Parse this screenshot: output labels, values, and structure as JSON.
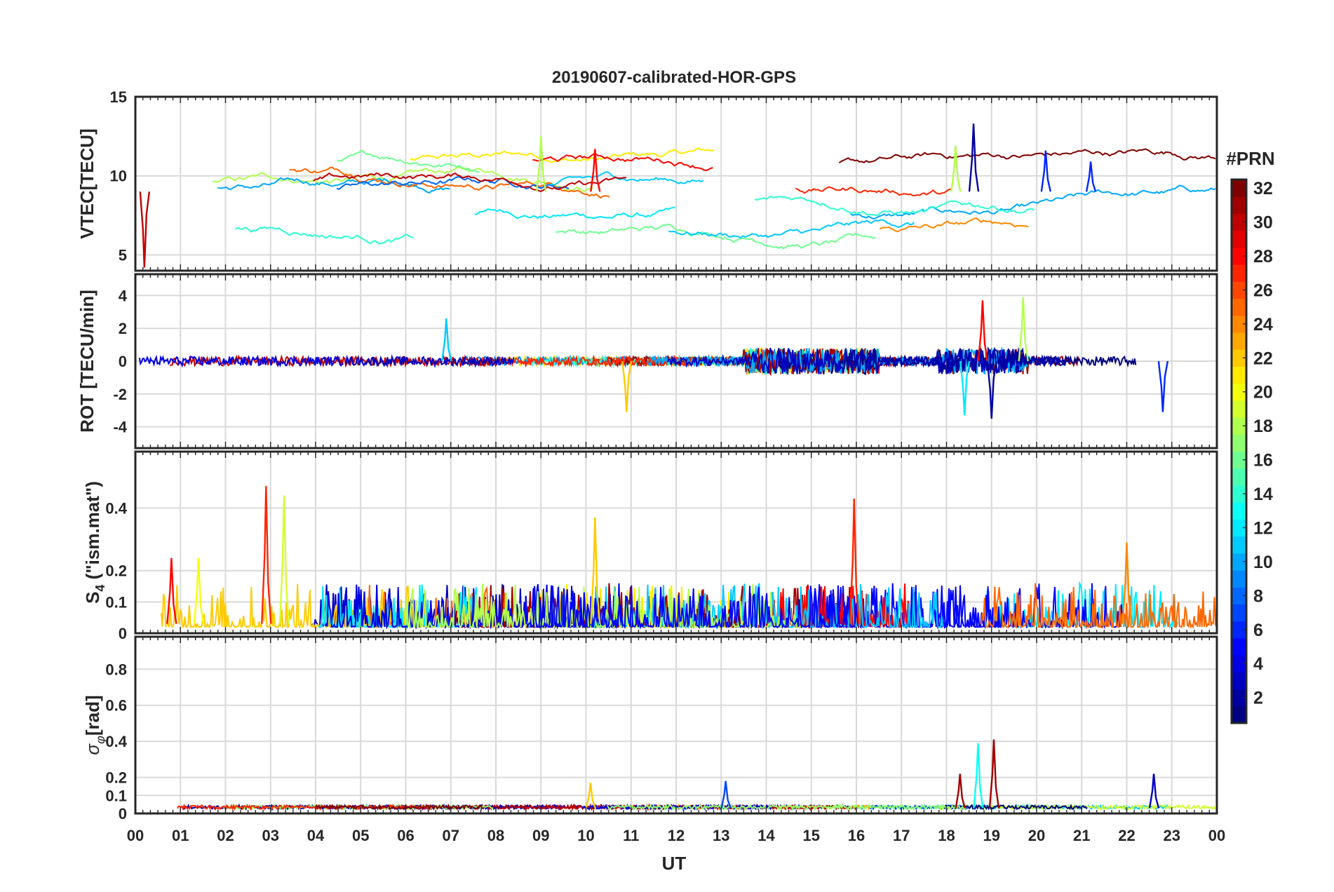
{
  "chart_data": {
    "type": "line",
    "title": "20190607-calibrated-HOR-GPS",
    "xlabel": "UT",
    "x_range": [
      0,
      24
    ],
    "x_ticks": [
      "00",
      "01",
      "02",
      "03",
      "04",
      "05",
      "06",
      "07",
      "08",
      "09",
      "10",
      "11",
      "12",
      "13",
      "14",
      "15",
      "16",
      "17",
      "18",
      "19",
      "20",
      "21",
      "22",
      "23",
      "00"
    ],
    "colorbar": {
      "label": "#PRN",
      "range": [
        1,
        32
      ],
      "ticks": [
        "2",
        "4",
        "6",
        "8",
        "10",
        "12",
        "14",
        "16",
        "18",
        "20",
        "22",
        "24",
        "26",
        "28",
        "30",
        "32"
      ]
    },
    "panels": [
      {
        "id": "vtec",
        "ylabel": "VTEC[TECU]",
        "ylim": [
          4,
          15
        ],
        "yticks": [
          "5",
          "10",
          "15"
        ],
        "baseline_range": [
          6,
          11
        ],
        "features": [
          {
            "t": 9.0,
            "v": 12.5,
            "prn": 18
          },
          {
            "t": 10.2,
            "v": 11.7,
            "prn": 28
          },
          {
            "t": 18.6,
            "v": 13.3,
            "prn": 2
          },
          {
            "t": 18.2,
            "v": 11.9,
            "prn": 18
          },
          {
            "t": 20.2,
            "v": 11.6,
            "prn": 6
          },
          {
            "t": 21.2,
            "v": 10.9,
            "prn": 6
          },
          {
            "t": 0.2,
            "v": 4.2,
            "prn": 30
          }
        ]
      },
      {
        "id": "rot",
        "ylabel": "ROT [TECU/min]",
        "ylim": [
          -5.3,
          5.3
        ],
        "yticks": [
          "-4",
          "-2",
          "0",
          "2",
          "4"
        ],
        "features": [
          {
            "t": 6.9,
            "v": 2.6,
            "prn": 11
          },
          {
            "t": 10.9,
            "v": -3.1,
            "prn": 22
          },
          {
            "t": 18.4,
            "v": -3.3,
            "prn": 12
          },
          {
            "t": 18.8,
            "v": 3.7,
            "prn": 28
          },
          {
            "t": 19.0,
            "v": -3.5,
            "prn": 2
          },
          {
            "t": 19.7,
            "v": 3.9,
            "prn": 18
          },
          {
            "t": 22.8,
            "v": -3.1,
            "prn": 6
          }
        ]
      },
      {
        "id": "s4",
        "ylabel": "S4 (\"ism.mat\")",
        "ylim": [
          0,
          0.58
        ],
        "yticks": [
          "0",
          "0.1",
          "0.2",
          "0.4"
        ],
        "features": [
          {
            "t": 2.9,
            "v": 0.47,
            "prn": 27
          },
          {
            "t": 3.3,
            "v": 0.44,
            "prn": 19
          },
          {
            "t": 10.2,
            "v": 0.37,
            "prn": 22
          },
          {
            "t": 15.95,
            "v": 0.43,
            "prn": 27
          },
          {
            "t": 22.0,
            "v": 0.29,
            "prn": 24
          },
          {
            "t": 1.4,
            "v": 0.24,
            "prn": 20
          },
          {
            "t": 0.8,
            "v": 0.24,
            "prn": 28
          }
        ]
      },
      {
        "id": "sigma_phi",
        "ylabel": "σφ[rad]",
        "ylim": [
          0,
          0.98
        ],
        "yticks": [
          "0",
          "0.1",
          "0.2",
          "0.4",
          "0.6",
          "0.8"
        ],
        "features": [
          {
            "t": 18.7,
            "v": 0.39,
            "prn": 13
          },
          {
            "t": 19.05,
            "v": 0.41,
            "prn": 31
          },
          {
            "t": 18.3,
            "v": 0.22,
            "prn": 31
          },
          {
            "t": 22.6,
            "v": 0.22,
            "prn": 3
          },
          {
            "t": 13.1,
            "v": 0.18,
            "prn": 7
          },
          {
            "t": 10.1,
            "v": 0.17,
            "prn": 22
          }
        ]
      }
    ]
  }
}
